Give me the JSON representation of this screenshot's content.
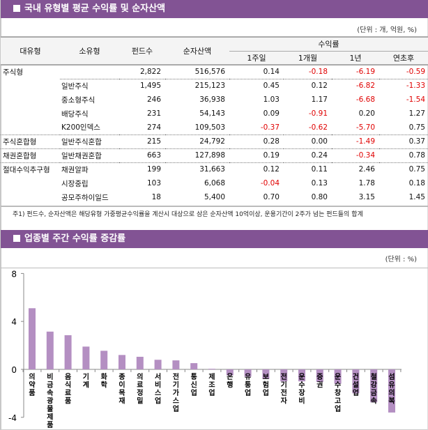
{
  "section1": {
    "title": "국내 유형별 평균 수익률 및 순자산액",
    "unit": "(단위 : 개, 억원, %)",
    "headers": {
      "major": "대유형",
      "minor": "소유형",
      "count": "펀드수",
      "assets": "순자산액",
      "returns": "수익률",
      "w1": "1주일",
      "m1": "1개월",
      "y1": "1년",
      "ytd": "연초후"
    },
    "rows": [
      {
        "major": "주식형",
        "minor": "",
        "count": "2,822",
        "assets": "516,576",
        "w1": "0.14",
        "m1": "-0.18",
        "y1": "-6.19",
        "ytd": "-0.59"
      },
      {
        "major": "",
        "minor": "일반주식",
        "count": "1,495",
        "assets": "215,123",
        "w1": "0.45",
        "m1": "0.12",
        "y1": "-6.82",
        "ytd": "-1.33"
      },
      {
        "major": "",
        "minor": "중소형주식",
        "count": "246",
        "assets": "36,938",
        "w1": "1.03",
        "m1": "1.17",
        "y1": "-6.68",
        "ytd": "-1.54"
      },
      {
        "major": "",
        "minor": "배당주식",
        "count": "231",
        "assets": "54,143",
        "w1": "0.09",
        "m1": "-0.91",
        "y1": "0.20",
        "ytd": "1.27"
      },
      {
        "major": "",
        "minor": "K200인덱스",
        "count": "274",
        "assets": "109,503",
        "w1": "-0.37",
        "m1": "-0.62",
        "y1": "-5.70",
        "ytd": "0.75"
      },
      {
        "major": "주식혼합형",
        "minor": "일반주식혼합",
        "count": "215",
        "assets": "24,792",
        "w1": "0.28",
        "m1": "0.00",
        "y1": "-1.49",
        "ytd": "0.37"
      },
      {
        "major": "채권혼합형",
        "minor": "일반채권혼합",
        "count": "663",
        "assets": "127,898",
        "w1": "0.19",
        "m1": "0.24",
        "y1": "-0.34",
        "ytd": "0.78"
      },
      {
        "major": "절대수익추구형",
        "minor": "채권알파",
        "count": "199",
        "assets": "31,663",
        "w1": "0.12",
        "m1": "0.11",
        "y1": "2.46",
        "ytd": "0.75"
      },
      {
        "major": "",
        "minor": "시장중립",
        "count": "103",
        "assets": "6,068",
        "w1": "-0.04",
        "m1": "0.13",
        "y1": "1.78",
        "ytd": "0.18"
      },
      {
        "major": "",
        "minor": "공모주하이일드",
        "count": "18",
        "assets": "5,400",
        "w1": "0.70",
        "m1": "0.80",
        "y1": "3.15",
        "ytd": "1.45"
      }
    ],
    "footnote": "주1) 펀드수, 순자산액은 해당유형 가중평균수익률을 계산시 대상으로 삼은 순자산액 10억이상, 운용기간이 2주가 넘는 펀드들의 합계"
  },
  "section2": {
    "title": "업종별 주간 수익률 증감률",
    "unit": "(단위 : %)"
  },
  "colors": {
    "header": "#825394",
    "bar": "#b48fc2",
    "negative": "#e00000"
  },
  "chart_data": {
    "type": "bar",
    "ylim": [
      -4,
      8
    ],
    "yticks": [
      "8",
      "4",
      "0",
      "-4"
    ],
    "grid": false,
    "categories": [
      "의약품",
      "비금속광물제품",
      "음식료품",
      "기계",
      "화학",
      "종이목재",
      "의료정밀",
      "서비스업",
      "전기가스업",
      "통신업",
      "제조업",
      "은행",
      "유통업",
      "보험업",
      "전기전자",
      "운수장비",
      "증권",
      "운수창고업",
      "건설업",
      "철강금속",
      "섬유의복"
    ],
    "values": [
      5.1,
      3.15,
      2.85,
      1.9,
      1.55,
      1.2,
      1.05,
      0.8,
      0.75,
      0.52,
      0.05,
      -0.5,
      -0.6,
      -0.8,
      -1.0,
      -1.0,
      -1.05,
      -1.2,
      -2.0,
      -2.75,
      -3.6
    ]
  }
}
